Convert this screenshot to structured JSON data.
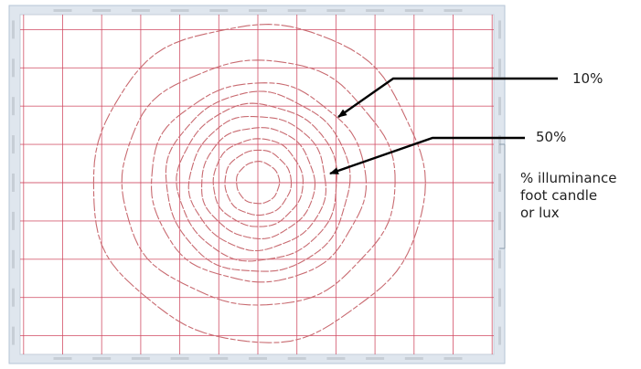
{
  "chart_data": {
    "type": "isoline",
    "grid": true,
    "grid_color": "#d04860",
    "contour_color": "#c86a70",
    "frame_color": "#b5c4d6",
    "background_color": "#ffffff",
    "x_gridlines": [
      -60,
      -50,
      -40,
      -30,
      -20,
      -10,
      0,
      10,
      20,
      30,
      40,
      50,
      60
    ],
    "y_gridlines": [
      40,
      30,
      20,
      10,
      0,
      -10,
      -20,
      -30,
      -40
    ],
    "contours": [
      {
        "rx": 5.5,
        "ry": 5.5
      },
      {
        "rx": 8.5,
        "ry": 8.5
      },
      {
        "rx": 11.5,
        "ry": 11.5
      },
      {
        "rx": 14.5,
        "ry": 14.5
      },
      {
        "rx": 17.5,
        "ry": 17.5
      },
      {
        "rx": 20.5,
        "ry": 20.5
      },
      {
        "rx": 23.5,
        "ry": 23.5
      },
      {
        "rx": 27.5,
        "ry": 26
      },
      {
        "rx": 35,
        "ry": 32
      },
      {
        "rx": 42.5,
        "ry": 41.5
      }
    ],
    "annotations": [
      {
        "text": "10%",
        "target": {
          "x": 26,
          "y": 25
        }
      },
      {
        "text": "50%",
        "target": {
          "x": 22,
          "y": 5
        }
      }
    ],
    "legend_text": [
      "% illuminance",
      "foot candle",
      "or lux"
    ]
  }
}
